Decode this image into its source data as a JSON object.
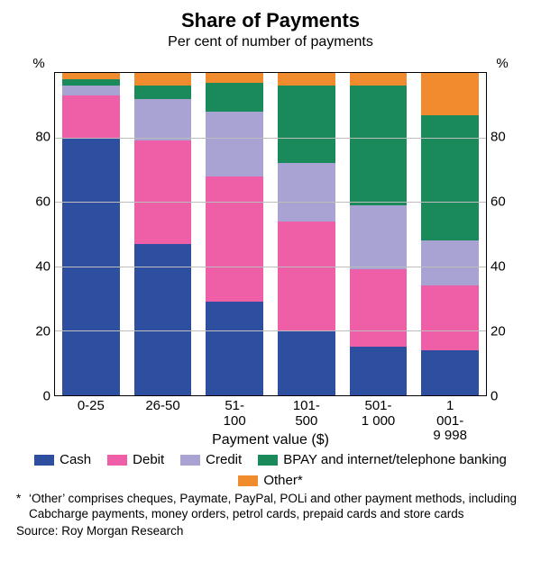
{
  "chart": {
    "type": "stacked-bar",
    "title": "Share of Payments",
    "subtitle": "Per cent of number of payments",
    "y_unit_label": "%",
    "x_axis_title": "Payment value ($)",
    "ylim": [
      0,
      100
    ],
    "yticks": [
      0,
      20,
      40,
      60,
      80
    ],
    "categories": [
      "0-25",
      "26-50",
      "51-100",
      "101-500",
      "501-\n1 000",
      "1 001-\n9 998"
    ],
    "series": [
      {
        "key": "cash",
        "label": "Cash",
        "color": "#2e4ea0"
      },
      {
        "key": "debit",
        "label": "Debit",
        "color": "#ef5fa7"
      },
      {
        "key": "credit",
        "label": "Credit",
        "color": "#a9a3d3"
      },
      {
        "key": "bpay",
        "label": "BPAY and internet/telephone banking",
        "color": "#1a8a5a"
      },
      {
        "key": "other",
        "label": "Other*",
        "color": "#f08c2e"
      }
    ],
    "data": {
      "cash": [
        80,
        47,
        29,
        20,
        15,
        14
      ],
      "debit": [
        13,
        32,
        39,
        34,
        24,
        20
      ],
      "credit": [
        3,
        13,
        20,
        18,
        20,
        14
      ],
      "bpay": [
        2,
        4,
        9,
        24,
        37,
        39
      ],
      "other": [
        2,
        4,
        3,
        4,
        4,
        13
      ]
    },
    "background_color": "#ffffff",
    "grid_color": "#bdbdbd",
    "border_color": "#000000",
    "fonts": {
      "title_fontsize": 22,
      "subtitle_fontsize": 16,
      "axis_fontsize": 15,
      "legend_fontsize": 15,
      "footnote_fontsize": 13.5
    }
  },
  "footnote": {
    "mark": "*",
    "text": "‘Other’ comprises cheques, Paymate, PayPal, POLi and other payment methods, including Cabcharge payments, money orders, petrol cards, prepaid cards and store cards"
  },
  "source": "Source: Roy Morgan Research"
}
